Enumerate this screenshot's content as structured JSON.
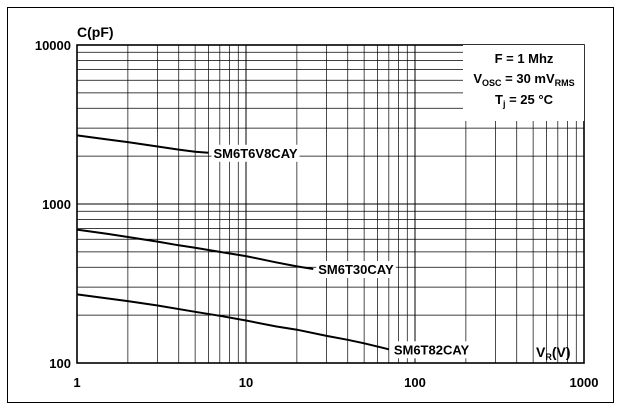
{
  "chart_data": {
    "type": "line",
    "title": "",
    "xlabel": "V_R(V)",
    "xlabel_main": "V",
    "xlabel_sub": "R",
    "xlabel_tail": "(V)",
    "ylabel": "C(pF)",
    "xscale": "log",
    "yscale": "log",
    "xlim": [
      1,
      1000
    ],
    "ylim": [
      100,
      10000
    ],
    "grid": true,
    "x_tick_labels": [
      "1",
      "10",
      "100",
      "1000"
    ],
    "y_tick_labels": [
      "100",
      "1000",
      "10000"
    ],
    "conditions": {
      "freq": "F = 1  Mhz",
      "vosc_main": "V",
      "vosc_sub": "OSC",
      "vosc_mid": " = 30 mV",
      "vosc_sub2": "RMS",
      "tj_main": "T",
      "tj_sub": "j",
      "tj_tail": " = 25 °C"
    },
    "series": [
      {
        "name": "SM6T6V8CAY",
        "x": [
          1,
          1.5,
          2,
          3,
          4,
          5,
          6
        ],
        "y": [
          2700,
          2550,
          2450,
          2300,
          2200,
          2130,
          2100
        ]
      },
      {
        "name": "SM6T30CAY",
        "x": [
          1,
          1.5,
          2,
          3,
          4,
          5,
          7,
          10,
          15,
          20,
          25
        ],
        "y": [
          690,
          650,
          620,
          580,
          550,
          530,
          500,
          470,
          430,
          405,
          390
        ]
      },
      {
        "name": "SM6T82CAY",
        "x": [
          1,
          2,
          3,
          5,
          7,
          10,
          15,
          20,
          30,
          40,
          50,
          70
        ],
        "y": [
          270,
          245,
          230,
          210,
          198,
          185,
          170,
          162,
          148,
          140,
          133,
          122
        ]
      }
    ]
  }
}
